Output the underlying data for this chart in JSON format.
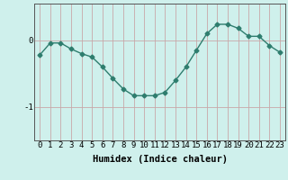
{
  "x": [
    0,
    1,
    2,
    3,
    4,
    5,
    6,
    7,
    8,
    9,
    10,
    11,
    12,
    13,
    14,
    15,
    16,
    17,
    18,
    19,
    20,
    21,
    22,
    23
  ],
  "y": [
    -0.22,
    -0.04,
    -0.04,
    -0.13,
    -0.2,
    -0.25,
    -0.4,
    -0.57,
    -0.73,
    -0.83,
    -0.83,
    -0.83,
    -0.78,
    -0.6,
    -0.4,
    -0.15,
    0.1,
    0.24,
    0.24,
    0.18,
    0.06,
    0.06,
    -0.08,
    -0.18
  ],
  "line_color": "#2e7d6e",
  "marker": "D",
  "markersize": 2.5,
  "linewidth": 1.0,
  "xlabel": "Humidex (Indice chaleur)",
  "ylim": [
    -1.5,
    0.55
  ],
  "xlim": [
    -0.5,
    23.5
  ],
  "yticks": [
    0,
    -1
  ],
  "ytick_labels": [
    "0",
    "-1"
  ],
  "xticks": [
    0,
    1,
    2,
    3,
    4,
    5,
    6,
    7,
    8,
    9,
    10,
    11,
    12,
    13,
    14,
    15,
    16,
    17,
    18,
    19,
    20,
    21,
    22,
    23
  ],
  "bg_color": "#cff0ec",
  "grid_color": "#c8a8a8",
  "xlabel_fontsize": 7.5,
  "tick_fontsize": 6.5
}
